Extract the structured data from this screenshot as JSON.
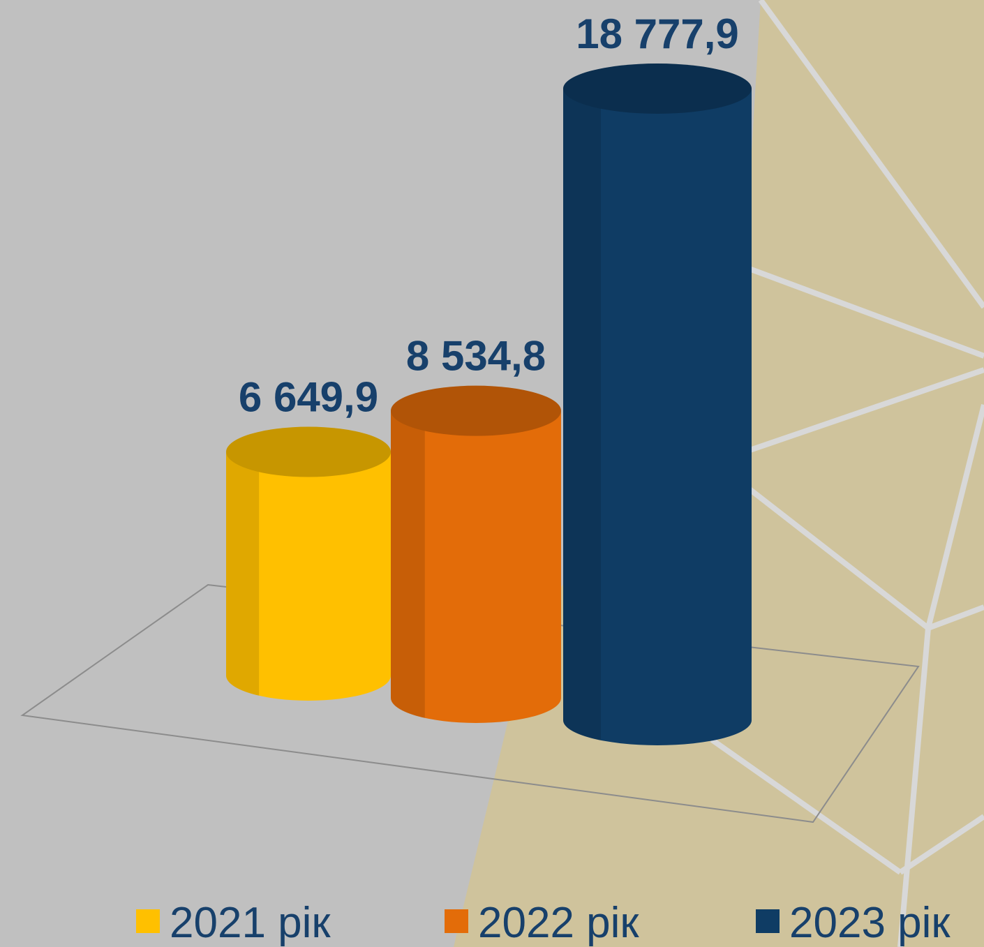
{
  "chart_data": {
    "type": "bar3d",
    "series": [
      {
        "name": "2021 рік",
        "color": "#ffc000",
        "values": [
          6649.9
        ],
        "value_labels": [
          "6 649,9"
        ]
      },
      {
        "name": "2022 рік",
        "color": "#e36c09",
        "values": [
          8534.8
        ],
        "value_labels": [
          "8 534,8"
        ]
      },
      {
        "name": "2023 рік",
        "color": "#0f3c64",
        "values": [
          18777.9
        ],
        "value_labels": [
          "18 777,9"
        ]
      }
    ],
    "legend": "bottom"
  }
}
